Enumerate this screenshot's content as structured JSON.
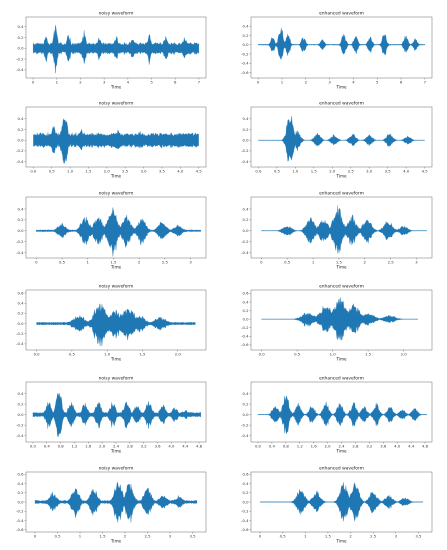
{
  "figure": {
    "color": "#1f77b4"
  },
  "chart_data": [
    {
      "type": "line",
      "title": "noisy waveform",
      "xlabel": "Time",
      "xlim": [
        -0.3,
        7.3
      ],
      "ylim": [
        -0.55,
        0.58
      ],
      "xticks": [
        "0",
        "1",
        "2",
        "3",
        "4",
        "5",
        "6",
        "7"
      ],
      "xtick_values": [
        0,
        1,
        2,
        3,
        4,
        5,
        6,
        7
      ],
      "yticks": [
        "0.4",
        "0.2",
        "0.0",
        "-0.2",
        "-0.4"
      ],
      "ytick_values": [
        0.4,
        0.2,
        0,
        -0.2,
        -0.4
      ],
      "duration": 7.0,
      "noise_floor": 0.12,
      "segments": [
        [
          0.55,
          0.3
        ],
        [
          0.95,
          0.5
        ],
        [
          1.5,
          0.3
        ],
        [
          2.15,
          0.35
        ],
        [
          2.8,
          0.28
        ],
        [
          3.5,
          0.28
        ],
        [
          4.2,
          0.25
        ],
        [
          4.9,
          0.32
        ],
        [
          5.6,
          0.3
        ],
        [
          6.4,
          0.28
        ]
      ]
    },
    {
      "type": "line",
      "title": "enhanced waveform",
      "xlabel": "Time",
      "xlim": [
        -0.3,
        7.3
      ],
      "ylim": [
        -0.72,
        0.6
      ],
      "xticks": [
        "0",
        "1",
        "2",
        "3",
        "4",
        "5",
        "6",
        "7"
      ],
      "xtick_values": [
        0,
        1,
        2,
        3,
        4,
        5,
        6,
        7
      ],
      "yticks": [
        "0.4",
        "0.2",
        "0.0",
        "-0.2",
        "-0.4",
        "-0.6"
      ],
      "ytick_values": [
        0.4,
        0.2,
        0,
        -0.2,
        -0.4,
        -0.6
      ],
      "duration": 7.0,
      "noise_floor": 0.01,
      "segments": [
        [
          0.6,
          0.2
        ],
        [
          0.95,
          0.55
        ],
        [
          1.25,
          0.3
        ],
        [
          1.9,
          0.2
        ],
        [
          2.7,
          0.15
        ],
        [
          3.6,
          0.3
        ],
        [
          4.1,
          0.25
        ],
        [
          4.7,
          0.22
        ],
        [
          5.3,
          0.32
        ],
        [
          6.2,
          0.25
        ],
        [
          6.6,
          0.15
        ]
      ]
    },
    {
      "type": "line",
      "title": "noisy waveform",
      "xlabel": "Time",
      "xlim": [
        -0.2,
        4.7
      ],
      "ylim": [
        -0.5,
        0.62
      ],
      "xticks": [
        "0.0",
        "0.5",
        "1.0",
        "1.5",
        "2.0",
        "2.5",
        "3.0",
        "3.5",
        "4.0",
        "4.5"
      ],
      "xtick_values": [
        0,
        0.5,
        1,
        1.5,
        2,
        2.5,
        3,
        3.5,
        4,
        4.5
      ],
      "yticks": [
        "0.4",
        "0.2",
        "0.0",
        "-0.2",
        "-0.4"
      ],
      "ytick_values": [
        0.4,
        0.2,
        0,
        -0.2,
        -0.4
      ],
      "duration": 4.5,
      "noise_floor": 0.15,
      "segments": [
        [
          0.55,
          0.3
        ],
        [
          0.85,
          0.58
        ],
        [
          1.3,
          0.22
        ],
        [
          1.8,
          0.2
        ],
        [
          2.3,
          0.22
        ],
        [
          2.9,
          0.2
        ],
        [
          3.5,
          0.18
        ],
        [
          4.1,
          0.16
        ]
      ]
    },
    {
      "type": "line",
      "title": "enhanced waveform",
      "xlabel": "Time",
      "xlim": [
        -0.2,
        4.7
      ],
      "ylim": [
        -0.5,
        0.62
      ],
      "xticks": [
        "0.0",
        "0.5",
        "1.0",
        "1.5",
        "2.0",
        "2.5",
        "3.0",
        "3.5",
        "4.0",
        "4.5"
      ],
      "xtick_values": [
        0,
        0.5,
        1,
        1.5,
        2,
        2.5,
        3,
        3.5,
        4,
        4.5
      ],
      "yticks": [
        "0.4",
        "0.2",
        "0.0",
        "-0.2",
        "-0.4"
      ],
      "ytick_values": [
        0.4,
        0.2,
        0,
        -0.2,
        -0.4
      ],
      "duration": 4.5,
      "noise_floor": 0.005,
      "segments": [
        [
          0.85,
          0.58
        ],
        [
          1.05,
          0.22
        ],
        [
          1.6,
          0.15
        ],
        [
          2.05,
          0.12
        ],
        [
          2.55,
          0.14
        ],
        [
          3.0,
          0.12
        ],
        [
          3.55,
          0.16
        ],
        [
          4.05,
          0.1
        ]
      ]
    },
    {
      "type": "line",
      "title": "noisy waveform",
      "xlabel": "Time",
      "xlim": [
        -0.2,
        3.3
      ],
      "ylim": [
        -0.5,
        0.62
      ],
      "xticks": [
        "0",
        "0.5",
        "1",
        "1.5",
        "2",
        "2.5",
        "3"
      ],
      "xtick_values": [
        0,
        0.5,
        1,
        1.5,
        2,
        2.5,
        3
      ],
      "yticks": [
        "0.4",
        "0.2",
        "0.0",
        "-0.2",
        "-0.4"
      ],
      "ytick_values": [
        0.4,
        0.2,
        0,
        -0.2,
        -0.4
      ],
      "duration": 3.2,
      "noise_floor": 0.02,
      "segments": [
        [
          0.5,
          0.15
        ],
        [
          0.95,
          0.3
        ],
        [
          1.2,
          0.3
        ],
        [
          1.48,
          0.58
        ],
        [
          1.75,
          0.35
        ],
        [
          2.05,
          0.28
        ],
        [
          2.45,
          0.22
        ],
        [
          2.75,
          0.12
        ]
      ]
    },
    {
      "type": "line",
      "title": "enhanced waveform",
      "xlabel": "Time",
      "xlim": [
        -0.2,
        3.3
      ],
      "ylim": [
        -0.5,
        0.62
      ],
      "xticks": [
        "0",
        "0.5",
        "1",
        "1.5",
        "2",
        "2.5",
        "3"
      ],
      "xtick_values": [
        0,
        0.5,
        1,
        1.5,
        2,
        2.5,
        3
      ],
      "yticks": [
        "0.4",
        "0.2",
        "0.0",
        "-0.2",
        "-0.4"
      ],
      "ytick_values": [
        0.4,
        0.2,
        0,
        -0.2,
        -0.4
      ],
      "duration": 3.2,
      "noise_floor": 0.005,
      "segments": [
        [
          0.5,
          0.12
        ],
        [
          0.95,
          0.28
        ],
        [
          1.2,
          0.25
        ],
        [
          1.48,
          0.55
        ],
        [
          1.75,
          0.3
        ],
        [
          2.05,
          0.25
        ],
        [
          2.45,
          0.2
        ],
        [
          2.75,
          0.1
        ]
      ]
    },
    {
      "type": "line",
      "title": "noisy waveform",
      "xlabel": "Time",
      "xlim": [
        -0.15,
        2.4
      ],
      "ylim": [
        -0.52,
        0.66
      ],
      "xticks": [
        "0.0",
        "0.5",
        "1.0",
        "1.5",
        "2.0"
      ],
      "xtick_values": [
        0,
        0.5,
        1,
        1.5,
        2
      ],
      "yticks": [
        "0.6",
        "0.4",
        "0.2",
        "0.0",
        "-0.2",
        "-0.4"
      ],
      "ytick_values": [
        0.6,
        0.4,
        0.2,
        0,
        -0.2,
        -0.4
      ],
      "duration": 2.25,
      "noise_floor": 0.03,
      "segments": [
        [
          0.6,
          0.2
        ],
        [
          0.9,
          0.5
        ],
        [
          1.1,
          0.35
        ],
        [
          1.3,
          0.4
        ],
        [
          1.45,
          0.2
        ],
        [
          1.75,
          0.15
        ]
      ]
    },
    {
      "type": "line",
      "title": "enhanced waveform",
      "xlabel": "Time",
      "xlim": [
        -0.15,
        2.4
      ],
      "ylim": [
        -0.72,
        0.68
      ],
      "xticks": [
        "0.0",
        "0.5",
        "1.0",
        "1.5",
        "2.0"
      ],
      "xtick_values": [
        0,
        0.5,
        1,
        1.5,
        2
      ],
      "yticks": [
        "0.6",
        "0.4",
        "0.2",
        "0.0",
        "-0.2",
        "-0.4",
        "-0.6"
      ],
      "ytick_values": [
        0.6,
        0.4,
        0.2,
        0,
        -0.2,
        -0.4,
        -0.6
      ],
      "duration": 2.2,
      "noise_floor": 0.004,
      "segments": [
        [
          0.65,
          0.2
        ],
        [
          0.9,
          0.35
        ],
        [
          1.1,
          0.62
        ],
        [
          1.3,
          0.4
        ],
        [
          1.5,
          0.18
        ],
        [
          1.8,
          0.1
        ]
      ]
    },
    {
      "type": "line",
      "title": "noisy waveform",
      "xlabel": "Time",
      "xlim": [
        -0.2,
        5.0
      ],
      "ylim": [
        -0.52,
        0.62
      ],
      "xticks": [
        "0.0",
        "0.4",
        "0.8",
        "1.2",
        "1.6",
        "2.0",
        "2.4",
        "2.8",
        "3.2",
        "3.6",
        "4.0",
        "4.4",
        "4.8"
      ],
      "xtick_values": [
        0,
        0.4,
        0.8,
        1.2,
        1.6,
        2.0,
        2.4,
        2.8,
        3.2,
        3.6,
        4.0,
        4.4,
        4.8
      ],
      "yticks": [
        "0.4",
        "0.2",
        "0.0",
        "-0.2",
        "-0.4"
      ],
      "ytick_values": [
        0.4,
        0.2,
        0,
        -0.2,
        -0.4
      ],
      "duration": 4.85,
      "noise_floor": 0.05,
      "segments": [
        [
          0.45,
          0.3
        ],
        [
          0.75,
          0.55
        ],
        [
          1.1,
          0.3
        ],
        [
          1.5,
          0.25
        ],
        [
          1.9,
          0.3
        ],
        [
          2.3,
          0.28
        ],
        [
          2.7,
          0.3
        ],
        [
          3.0,
          0.25
        ],
        [
          3.35,
          0.3
        ],
        [
          3.75,
          0.22
        ],
        [
          4.1,
          0.15
        ],
        [
          4.4,
          0.1
        ]
      ]
    },
    {
      "type": "line",
      "title": "enhanced waveform",
      "xlabel": "Time",
      "xlim": [
        -0.2,
        5.0
      ],
      "ylim": [
        -0.52,
        0.62
      ],
      "xticks": [
        "0.0",
        "0.4",
        "0.8",
        "1.2",
        "1.6",
        "2.0",
        "2.4",
        "2.8",
        "3.2",
        "3.6",
        "4.0",
        "4.4",
        "4.8"
      ],
      "xtick_values": [
        0,
        0.4,
        0.8,
        1.2,
        1.6,
        2.0,
        2.4,
        2.8,
        3.2,
        3.6,
        4.0,
        4.4,
        4.8
      ],
      "yticks": [
        "0.4",
        "0.2",
        "0.0",
        "-0.2",
        "-0.4"
      ],
      "ytick_values": [
        0.4,
        0.2,
        0,
        -0.2,
        -0.4
      ],
      "duration": 4.85,
      "noise_floor": 0.005,
      "segments": [
        [
          0.5,
          0.25
        ],
        [
          0.8,
          0.5
        ],
        [
          1.15,
          0.25
        ],
        [
          1.55,
          0.2
        ],
        [
          1.95,
          0.28
        ],
        [
          2.35,
          0.25
        ],
        [
          2.75,
          0.28
        ],
        [
          3.05,
          0.2
        ],
        [
          3.4,
          0.25
        ],
        [
          3.8,
          0.2
        ],
        [
          4.15,
          0.12
        ],
        [
          4.5,
          0.15
        ]
      ]
    },
    {
      "type": "line",
      "title": "noisy waveform",
      "xlabel": "Time",
      "xlim": [
        -0.2,
        3.8
      ],
      "ylim": [
        -0.65,
        0.65
      ],
      "xticks": [
        "0",
        "0.5",
        "1",
        "1.5",
        "2",
        "2.5",
        "3",
        "3.5"
      ],
      "xtick_values": [
        0,
        0.5,
        1,
        1.5,
        2,
        2.5,
        3,
        3.5
      ],
      "yticks": [
        "0.6",
        "0.4",
        "0.2",
        "0.0",
        "-0.2",
        "-0.4",
        "-0.6"
      ],
      "ytick_values": [
        0.6,
        0.4,
        0.2,
        0,
        -0.2,
        -0.4,
        -0.6
      ],
      "duration": 3.6,
      "noise_floor": 0.04,
      "segments": [
        [
          0.4,
          0.25
        ],
        [
          0.9,
          0.4
        ],
        [
          1.3,
          0.35
        ],
        [
          1.85,
          0.55
        ],
        [
          2.1,
          0.5
        ],
        [
          2.5,
          0.35
        ],
        [
          2.85,
          0.2
        ],
        [
          3.2,
          0.15
        ]
      ]
    },
    {
      "type": "line",
      "title": "enhanced waveform",
      "xlabel": "Time",
      "xlim": [
        -0.2,
        3.8
      ],
      "ylim": [
        -0.65,
        0.65
      ],
      "xticks": [
        "0",
        "0.5",
        "1",
        "1.5",
        "2",
        "2.5",
        "3",
        "3.5"
      ],
      "xtick_values": [
        0,
        0.5,
        1,
        1.5,
        2,
        2.5,
        3,
        3.5
      ],
      "yticks": [
        "0.6",
        "0.4",
        "0.2",
        "0.0",
        "-0.2",
        "-0.4",
        "-0.6"
      ],
      "ytick_values": [
        0.6,
        0.4,
        0.2,
        0,
        -0.2,
        -0.4,
        -0.6
      ],
      "duration": 3.6,
      "noise_floor": 0.004,
      "segments": [
        [
          0.9,
          0.35
        ],
        [
          1.25,
          0.3
        ],
        [
          1.85,
          0.5
        ],
        [
          2.1,
          0.5
        ],
        [
          2.5,
          0.3
        ],
        [
          2.85,
          0.18
        ],
        [
          3.2,
          0.12
        ]
      ]
    }
  ]
}
